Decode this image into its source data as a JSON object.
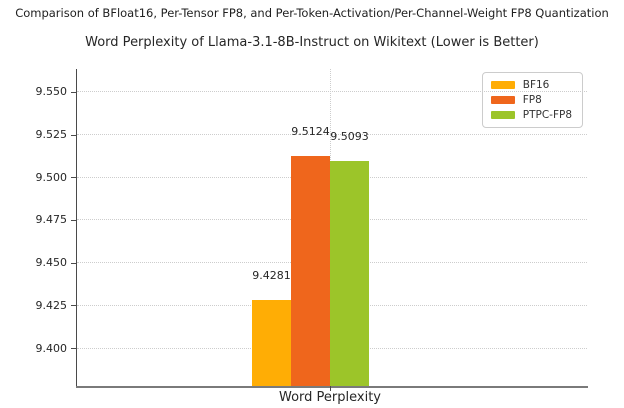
{
  "page_heading": "Comparison of BFloat16, Per-Tensor FP8, and Per-Token-Activation/Per-Channel-Weight FP8 Quantization",
  "chart_data": {
    "type": "bar",
    "title": "Word Perplexity of Llama-3.1-8B-Instruct on Wikitext (Lower is Better)",
    "categories": [
      "Word Perplexity"
    ],
    "series": [
      {
        "name": "BF16",
        "color": "#FFAD05",
        "values": [
          9.4281
        ],
        "data_label": "9.4281"
      },
      {
        "name": "FP8",
        "color": "#EF661C",
        "values": [
          9.5124
        ],
        "data_label": "9.5124"
      },
      {
        "name": "PTPC-FP8",
        "color": "#9CC529",
        "values": [
          9.5093
        ],
        "data_label": "9.5093"
      }
    ],
    "xlabel": "",
    "ylabel": "",
    "ylim": [
      9.3778,
      9.5634
    ],
    "ytick_values": [
      9.4,
      9.425,
      9.45,
      9.475,
      9.5,
      9.525,
      9.55
    ],
    "ytick_labels": [
      "9.400",
      "9.425",
      "9.450",
      "9.475",
      "9.500",
      "9.525",
      "9.550"
    ],
    "grid": "dotted horizontal lines at y-ticks plus one dotted vertical line at category center",
    "legend_position": "upper right",
    "legend_entries": [
      "BF16",
      "FP8",
      "PTPC-FP8"
    ],
    "text_color": "#262626"
  }
}
